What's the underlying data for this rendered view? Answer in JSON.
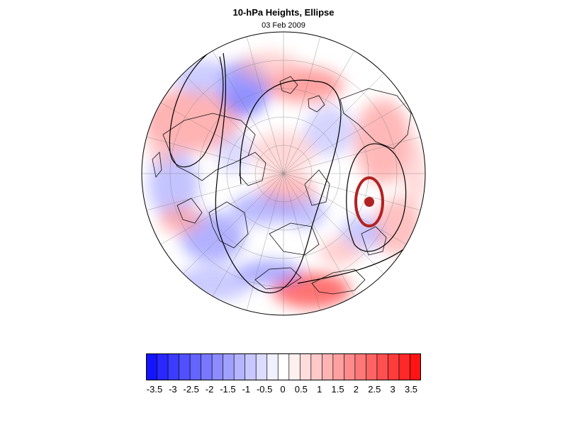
{
  "title": "10-hPa Heights, Ellipse",
  "subtitle": "03 Feb 2009",
  "colorbar": {
    "levels": [
      "-3.5",
      "-3",
      "-2.5",
      "-2",
      "-1.5",
      "-1",
      "-0.5",
      "0",
      "0.5",
      "1",
      "1.5",
      "2",
      "2.5",
      "3",
      "3.5"
    ],
    "colors": [
      "#1414ff",
      "#2828ff",
      "#3c3cff",
      "#5050ff",
      "#6464ff",
      "#7878ff",
      "#8c8cff",
      "#a0a0ff",
      "#b4b4ff",
      "#c8c8ff",
      "#dcdcff",
      "#f0f0ff",
      "#ffffff",
      "#fff0f0",
      "#ffdcdc",
      "#ffc8c8",
      "#ffb4b4",
      "#ffa0a0",
      "#ff8c8c",
      "#ff7878",
      "#ff6464",
      "#ff5050",
      "#ff3c3c",
      "#ff2828",
      "#ff1414"
    ]
  },
  "map": {
    "projection": "orthographic-north-polar",
    "ellipse_color": "#b22222",
    "contour_color": "#000000"
  }
}
